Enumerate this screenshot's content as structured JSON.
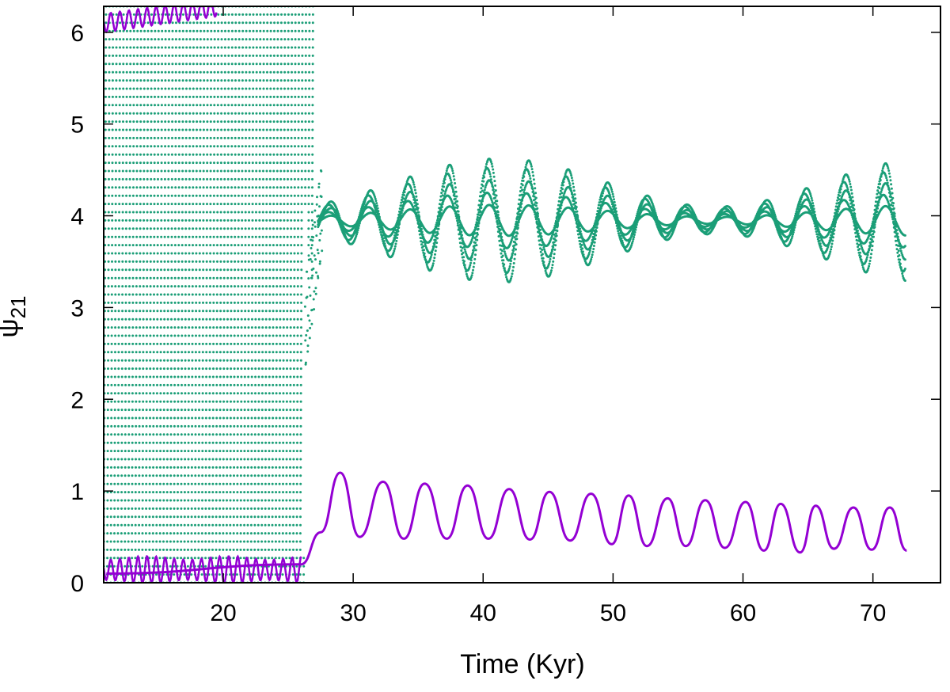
{
  "chart_data": {
    "type": "scatter",
    "title": "",
    "xlabel": "Time (Kyr)",
    "ylabel_main": "ψ",
    "ylabel_sub": "21",
    "xlim": [
      10.8,
      75.2
    ],
    "ylim": [
      0,
      6.283
    ],
    "xticks": [
      20,
      30,
      40,
      50,
      60,
      70
    ],
    "yticks": [
      0,
      1,
      2,
      3,
      4,
      5,
      6
    ],
    "xtick_labels": [
      "20",
      "30",
      "40",
      "50",
      "60",
      "70"
    ],
    "ytick_labels": [
      "0",
      "1",
      "2",
      "3",
      "4",
      "5",
      "6"
    ],
    "grid": false,
    "series": [
      {
        "name": "green-dotted",
        "color": "#1a9e77",
        "style": "dots",
        "description": "circulating phase 0 to 2π until ~27 Kyr, then libration around ~3.9",
        "circulating_until": 27.0,
        "libration_center": 3.95,
        "libration_period": 3.05,
        "libration_amplitude_range": [
          0.1,
          0.75
        ],
        "x_end": 72.5
      },
      {
        "name": "purple-solid",
        "color": "#9400d3",
        "style": "line",
        "description": "near 0 (and 2π) until ~26 Kyr, then libration around ~0.75",
        "x": [
          11,
          26,
          27.5,
          29,
          30.5,
          32.3,
          33.9,
          35.5,
          37.2,
          38.8,
          40.4,
          42.0,
          43.6,
          45.1,
          46.7,
          48.3,
          49.9,
          51.2,
          52.6,
          54.2,
          55.6,
          57.1,
          58.6,
          60.2,
          61.6,
          62.9,
          64.4,
          65.6,
          67.0,
          68.5,
          69.9,
          71.3,
          72.6
        ],
        "y": [
          0.1,
          0.2,
          0.55,
          1.2,
          0.5,
          1.1,
          0.48,
          1.08,
          0.48,
          1.06,
          0.48,
          1.02,
          0.47,
          0.99,
          0.46,
          0.97,
          0.42,
          0.95,
          0.4,
          0.92,
          0.4,
          0.9,
          0.38,
          0.88,
          0.35,
          0.86,
          0.33,
          0.84,
          0.37,
          0.82,
          0.36,
          0.82,
          0.35
        ]
      }
    ]
  }
}
